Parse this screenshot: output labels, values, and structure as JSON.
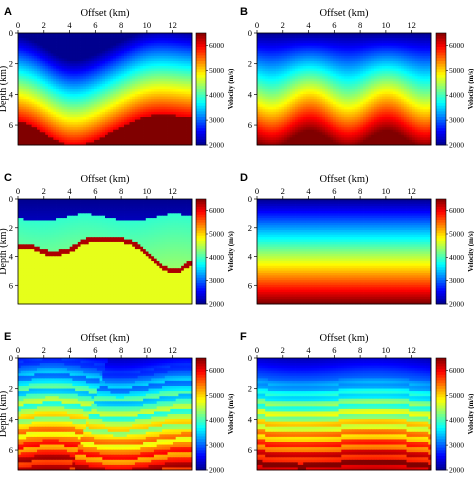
{
  "figure": {
    "panels": [
      {
        "id": "A",
        "label": "A",
        "model": "smooth"
      },
      {
        "id": "B",
        "label": "B",
        "model": "undulating"
      },
      {
        "id": "C",
        "label": "C",
        "model": "salt"
      },
      {
        "id": "D",
        "label": "D",
        "model": "layered"
      },
      {
        "id": "E",
        "label": "E",
        "model": "faulted"
      },
      {
        "id": "F",
        "label": "F",
        "model": "faulted2"
      }
    ],
    "colorscale": [
      "#00008f",
      "#0000ff",
      "#0080ff",
      "#00ffff",
      "#80ff80",
      "#ffff00",
      "#ff8000",
      "#ff0000",
      "#800000"
    ]
  },
  "chart_data": [
    {
      "type": "heatmap",
      "panel": "A",
      "xlabel": "Offset (km)",
      "ylabel": "Depth (km)",
      "xlim": [
        0,
        13.5
      ],
      "ylim": [
        7.3,
        0
      ],
      "xticks": [
        0,
        2,
        4,
        6,
        8,
        10,
        12
      ],
      "yticks": [
        0,
        2,
        4,
        6
      ],
      "colorbar": {
        "label": "Velocity (m/s)",
        "range": [
          2000,
          6500
        ],
        "ticks": [
          2000,
          3000,
          4000,
          5000,
          6000
        ]
      }
    },
    {
      "type": "heatmap",
      "panel": "B",
      "xlabel": "Offset (km)",
      "ylabel": "",
      "xlim": [
        0,
        13.5
      ],
      "ylim": [
        7.3,
        0
      ],
      "xticks": [
        0,
        2,
        4,
        6,
        8,
        10,
        12
      ],
      "yticks": [
        0,
        2,
        4,
        6
      ],
      "colorbar": {
        "label": "Velocity (m/s)",
        "range": [
          2000,
          6500
        ],
        "ticks": [
          2000,
          3000,
          4000,
          5000,
          6000
        ]
      }
    },
    {
      "type": "heatmap",
      "panel": "C",
      "xlabel": "Offset (km)",
      "ylabel": "Depth (km)",
      "xlim": [
        0,
        13.5
      ],
      "ylim": [
        7.3,
        0
      ],
      "xticks": [
        0,
        2,
        4,
        6,
        8,
        10,
        12
      ],
      "yticks": [
        0,
        2,
        4,
        6
      ],
      "colorbar": {
        "label": "Velocity (m/s)",
        "range": [
          2000,
          6500
        ],
        "ticks": [
          2000,
          3000,
          4000,
          5000,
          6000
        ]
      }
    },
    {
      "type": "heatmap",
      "panel": "D",
      "xlabel": "Offset (km)",
      "ylabel": "",
      "xlim": [
        0,
        13.5
      ],
      "ylim": [
        7.3,
        0
      ],
      "xticks": [
        0,
        2,
        4,
        6,
        8,
        10,
        12
      ],
      "yticks": [
        0,
        2,
        4,
        6
      ],
      "colorbar": {
        "label": "Velocity (m/s)",
        "range": [
          2000,
          6500
        ],
        "ticks": [
          2000,
          3000,
          4000,
          5000,
          6000
        ]
      }
    },
    {
      "type": "heatmap",
      "panel": "E",
      "xlabel": "Offset (km)",
      "ylabel": "Depth (km)",
      "xlim": [
        0,
        13.5
      ],
      "ylim": [
        7.3,
        0
      ],
      "xticks": [
        0,
        2,
        4,
        6,
        8,
        10,
        12
      ],
      "yticks": [
        0,
        2,
        4,
        6
      ],
      "colorbar": {
        "label": "Velocity (m/s)",
        "range": [
          2000,
          6500
        ],
        "ticks": [
          2000,
          3000,
          4000,
          5000,
          6000
        ]
      }
    },
    {
      "type": "heatmap",
      "panel": "F",
      "xlabel": "Offset (km)",
      "ylabel": "",
      "xlim": [
        0,
        13.5
      ],
      "ylim": [
        7.3,
        0
      ],
      "xticks": [
        0,
        2,
        4,
        6,
        8,
        10,
        12
      ],
      "yticks": [
        0,
        2,
        4,
        6
      ],
      "colorbar": {
        "label": "Velocity (m/s)",
        "range": [
          2000,
          6500
        ],
        "ticks": [
          2000,
          3000,
          4000,
          5000,
          6000
        ]
      }
    }
  ]
}
